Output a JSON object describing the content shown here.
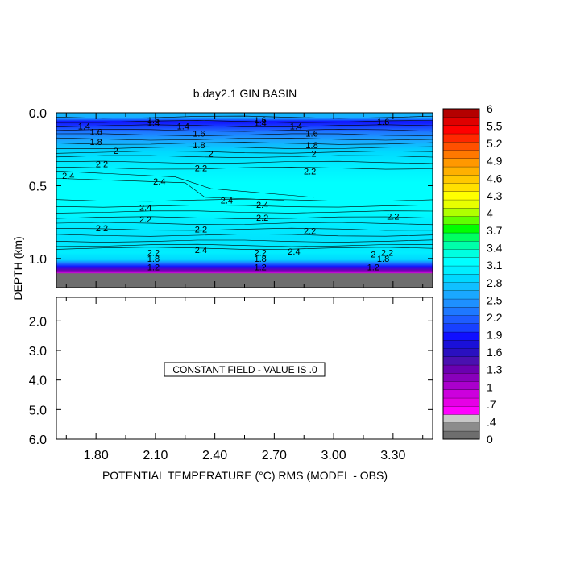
{
  "chart_data": {
    "type": "heatmap",
    "title": "b.day2.1 GIN BASIN",
    "xlabel": "POTENTIAL TEMPERATURE (°C) RMS (MODEL - OBS)",
    "ylabel": "DEPTH (km)",
    "x_ticks": [
      "1.80",
      "2.10",
      "2.40",
      "2.70",
      "3.00",
      "3.30"
    ],
    "x_tick_values": [
      1.8,
      2.1,
      2.4,
      2.7,
      3.0,
      3.3
    ],
    "xlim": [
      1.6,
      3.5
    ],
    "upper_panel": {
      "ylim": [
        0.0,
        1.2
      ],
      "y_ticks": [
        "0.0",
        "0.5",
        "1.0"
      ],
      "y_tick_values": [
        0.0,
        0.5,
        1.0
      ],
      "contour_labels": [
        {
          "text": "1.6",
          "x": 2.09,
          "depth": 0.05
        },
        {
          "text": "1.4",
          "x": 2.09,
          "depth": 0.07
        },
        {
          "text": "1.6",
          "x": 2.63,
          "depth": 0.05
        },
        {
          "text": "1.4",
          "x": 2.63,
          "depth": 0.07
        },
        {
          "text": "1.6",
          "x": 3.25,
          "depth": 0.06
        },
        {
          "text": "1.4",
          "x": 1.74,
          "depth": 0.09
        },
        {
          "text": "1.4",
          "x": 2.24,
          "depth": 0.09
        },
        {
          "text": "1.4",
          "x": 2.81,
          "depth": 0.09
        },
        {
          "text": "1.6",
          "x": 1.8,
          "depth": 0.13
        },
        {
          "text": "1.6",
          "x": 2.32,
          "depth": 0.14
        },
        {
          "text": "1.6",
          "x": 2.89,
          "depth": 0.14
        },
        {
          "text": "1.8",
          "x": 1.8,
          "depth": 0.2
        },
        {
          "text": "1.8",
          "x": 2.32,
          "depth": 0.22
        },
        {
          "text": "1.8",
          "x": 2.89,
          "depth": 0.22
        },
        {
          "text": "2",
          "x": 1.9,
          "depth": 0.26
        },
        {
          "text": "2",
          "x": 2.38,
          "depth": 0.28
        },
        {
          "text": "2",
          "x": 2.9,
          "depth": 0.28
        },
        {
          "text": "2.2",
          "x": 1.83,
          "depth": 0.35
        },
        {
          "text": "2.2",
          "x": 2.33,
          "depth": 0.38
        },
        {
          "text": "2.2",
          "x": 2.88,
          "depth": 0.4
        },
        {
          "text": "2.4",
          "x": 1.66,
          "depth": 0.43
        },
        {
          "text": "2.4",
          "x": 2.12,
          "depth": 0.47
        },
        {
          "text": "2.4",
          "x": 2.46,
          "depth": 0.6
        },
        {
          "text": "2.4",
          "x": 2.64,
          "depth": 0.63
        },
        {
          "text": "2.4",
          "x": 2.05,
          "depth": 0.65
        },
        {
          "text": "2.2",
          "x": 2.05,
          "depth": 0.73
        },
        {
          "text": "2.2",
          "x": 2.64,
          "depth": 0.72
        },
        {
          "text": "2.2",
          "x": 3.3,
          "depth": 0.71
        },
        {
          "text": "2.2",
          "x": 1.83,
          "depth": 0.79
        },
        {
          "text": "2.2",
          "x": 2.33,
          "depth": 0.8
        },
        {
          "text": "2.2",
          "x": 2.88,
          "depth": 0.81
        },
        {
          "text": "2.4",
          "x": 2.33,
          "depth": 0.94
        },
        {
          "text": "2.4",
          "x": 2.8,
          "depth": 0.95
        },
        {
          "text": "2.2",
          "x": 2.09,
          "depth": 0.96
        },
        {
          "text": "2.2",
          "x": 2.63,
          "depth": 0.96
        },
        {
          "text": "2.2",
          "x": 3.27,
          "depth": 0.96
        },
        {
          "text": "2",
          "x": 3.2,
          "depth": 0.97
        },
        {
          "text": "1.8",
          "x": 2.09,
          "depth": 1.0
        },
        {
          "text": "1.8",
          "x": 2.63,
          "depth": 1.0
        },
        {
          "text": "1.8",
          "x": 3.25,
          "depth": 1.0
        },
        {
          "text": "1.2",
          "x": 2.09,
          "depth": 1.06
        },
        {
          "text": "1.2",
          "x": 2.63,
          "depth": 1.06
        },
        {
          "text": "1.2",
          "x": 3.2,
          "depth": 1.06
        }
      ]
    },
    "lower_panel": {
      "ylim": [
        1.2,
        6.0
      ],
      "y_ticks": [
        "2.0",
        "3.0",
        "4.0",
        "5.0",
        "6.0"
      ],
      "y_tick_values": [
        2.0,
        3.0,
        4.0,
        5.0,
        6.0
      ],
      "annotation": "CONSTANT FIELD - VALUE IS .0"
    },
    "colorbar": {
      "labels": [
        "6",
        "5.5",
        "5.2",
        "4.9",
        "4.6",
        "4.3",
        "4",
        "3.7",
        "3.4",
        "3.1",
        "2.8",
        "2.5",
        "2.2",
        "1.9",
        "1.6",
        "1.3",
        "1",
        ".7",
        ".4",
        "0"
      ],
      "label_values": [
        6,
        5.5,
        5.2,
        4.9,
        4.6,
        4.3,
        4,
        3.7,
        3.4,
        3.1,
        2.8,
        2.5,
        2.2,
        1.9,
        1.6,
        1.3,
        1,
        0.7,
        0.4,
        0
      ],
      "band_count": 40,
      "palette": [
        "#6e6e6e",
        "#8c8c8c",
        "#c8c8c8",
        "#ff00ff",
        "#e600e6",
        "#cc00dd",
        "#aa00cc",
        "#8800bb",
        "#6a00b0",
        "#4a10b0",
        "#2a10c0",
        "#1a10d8",
        "#1010ff",
        "#1840ff",
        "#1e5cff",
        "#1e78ff",
        "#1e90ff",
        "#1aa8ff",
        "#10c0ff",
        "#00d8ff",
        "#00eeff",
        "#00ffff",
        "#00ffe0",
        "#00ffaa",
        "#00ff60",
        "#00ff00",
        "#60ff00",
        "#b0ff00",
        "#e8ff00",
        "#ffff00",
        "#ffe000",
        "#ffc800",
        "#ffb000",
        "#ff9800",
        "#ff7800",
        "#ff5000",
        "#ff2800",
        "#ff0000",
        "#e00000",
        "#b40000"
      ]
    }
  }
}
